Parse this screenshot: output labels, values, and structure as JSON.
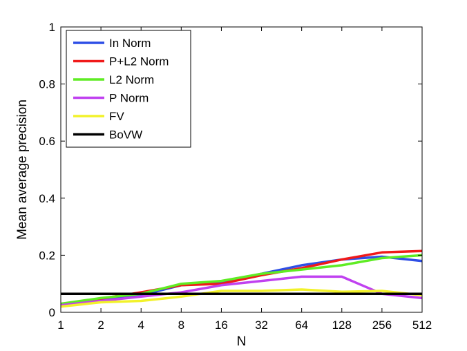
{
  "chart_data": {
    "type": "line",
    "title": "",
    "xlabel": "N",
    "ylabel": "Mean average precision",
    "x_scale": "log2",
    "categories": [
      "1",
      "2",
      "4",
      "8",
      "16",
      "32",
      "64",
      "128",
      "256",
      "512"
    ],
    "x": [
      1,
      2,
      4,
      8,
      16,
      32,
      64,
      128,
      256,
      512
    ],
    "ylim": [
      0,
      1
    ],
    "yticks": [
      "0",
      "0.2",
      "0.4",
      "0.6",
      "0.8",
      "1"
    ],
    "grid": false,
    "legend_position": "top-left",
    "series": [
      {
        "name": "In Norm",
        "color": "#2e4fe6",
        "values": [
          0.025,
          0.045,
          0.06,
          0.095,
          0.105,
          0.135,
          0.165,
          0.185,
          0.195,
          0.18
        ]
      },
      {
        "name": "P+L2 Norm",
        "color": "#f01a1a",
        "values": [
          0.028,
          0.048,
          0.07,
          0.095,
          0.1,
          0.13,
          0.155,
          0.185,
          0.21,
          0.215
        ]
      },
      {
        "name": "L2 Norm",
        "color": "#5fec24",
        "values": [
          0.03,
          0.05,
          0.065,
          0.1,
          0.11,
          0.135,
          0.15,
          0.165,
          0.19,
          0.2
        ]
      },
      {
        "name": "P Norm",
        "color": "#c041f0",
        "values": [
          0.025,
          0.04,
          0.055,
          0.07,
          0.095,
          0.11,
          0.125,
          0.125,
          0.065,
          0.05
        ]
      },
      {
        "name": "FV",
        "color": "#f2f22a",
        "values": [
          0.02,
          0.035,
          0.04,
          0.055,
          0.075,
          0.075,
          0.08,
          0.072,
          0.075,
          0.06
        ]
      },
      {
        "name": "BoVW",
        "color": "#000000",
        "values": [
          0.065,
          0.065,
          0.065,
          0.065,
          0.065,
          0.065,
          0.065,
          0.065,
          0.065,
          0.065
        ]
      }
    ]
  }
}
